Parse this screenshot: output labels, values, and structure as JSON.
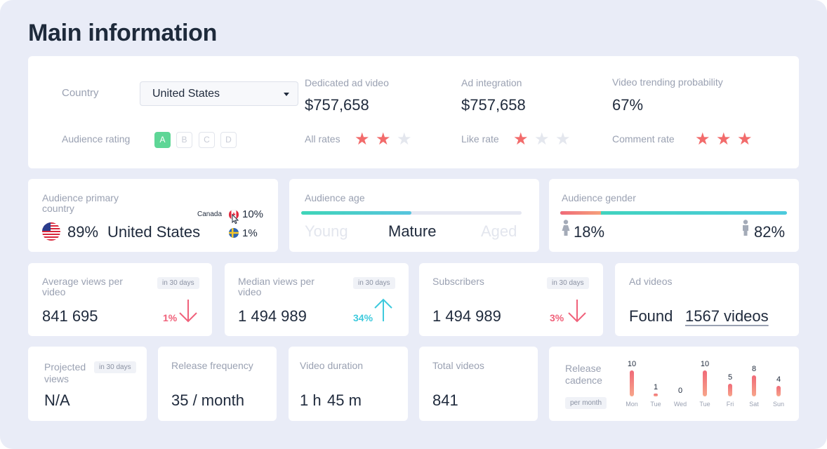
{
  "page_title": "Main information",
  "top": {
    "country_label": "Country",
    "country_value": "United States",
    "audience_rating_label": "Audience rating",
    "rating_grades": [
      "A",
      "B",
      "C",
      "D"
    ],
    "rating_selected": "A",
    "dedicated_ad_video": {
      "label": "Dedicated ad video",
      "value": "$757,658"
    },
    "ad_integration": {
      "label": "Ad integration",
      "value": "$757,658"
    },
    "trending": {
      "label": "Video trending probability",
      "value": "67%"
    },
    "all_rates": {
      "label": "All rates",
      "stars": 2,
      "max": 3
    },
    "like_rate": {
      "label": "Like rate",
      "stars": 1,
      "max": 3
    },
    "comment_rate": {
      "label": "Comment rate",
      "stars": 3,
      "max": 3
    }
  },
  "primary_country": {
    "label": "Audience primary country",
    "main_pct": "89%",
    "main_country": "United States",
    "canada_label": "Canada",
    "canada_pct": "10%",
    "sweden_pct": "1%"
  },
  "audience_age": {
    "label": "Audience age",
    "levels": [
      "Young",
      "Mature",
      "Aged"
    ],
    "selected": "Mature",
    "fill_fraction": 0.5
  },
  "audience_gender": {
    "label": "Audience gender",
    "female_pct": "18%",
    "male_pct": "82%",
    "female_fraction": 0.18
  },
  "stats": {
    "avg_views": {
      "label": "Average views per video",
      "badge": "in 30 days",
      "value": "841 695",
      "change": "1%"
    },
    "median_views": {
      "label": "Median views per video",
      "badge": "in 30 days",
      "value": "1 494 989",
      "change": "34%"
    },
    "subscribers": {
      "label": "Subscribers",
      "badge": "in 30 days",
      "value": "1 494 989",
      "change": "3%"
    },
    "ad_videos": {
      "label": "Ad videos",
      "found_label": "Found",
      "found_link": "1567 videos"
    }
  },
  "bottom": {
    "projected": {
      "label": "Projected views",
      "badge": "in 30 days",
      "value": "N/A"
    },
    "frequency": {
      "label": "Release frequency",
      "value": "35 / month"
    },
    "duration": {
      "label": "Video duration",
      "hours": "1 h",
      "minutes": "45 m"
    },
    "total": {
      "label": "Total videos",
      "value": "841"
    }
  },
  "chart_data": {
    "type": "bar",
    "title": "Release cadence",
    "badge": "per month",
    "categories": [
      "Mon",
      "Tue",
      "Wed",
      "Tue",
      "Fri",
      "Sat",
      "Sun"
    ],
    "values": [
      10,
      1,
      0,
      10,
      5,
      8,
      4
    ],
    "ylim": [
      0,
      10
    ]
  },
  "colors": {
    "accent_red": "#f26b6b",
    "accent_teal": "#4cd0c4",
    "rating_green": "#5ed696"
  }
}
